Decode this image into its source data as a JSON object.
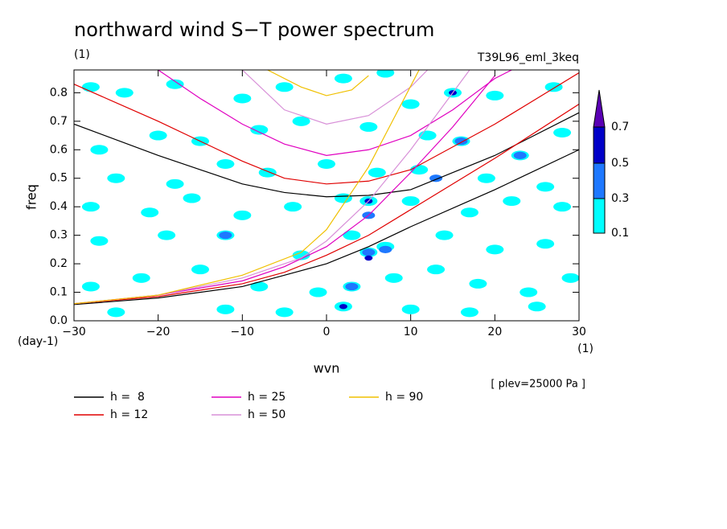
{
  "chart_data": {
    "type": "contour",
    "title": "northward wind S−T power spectrum",
    "subtitle": "T39L96_eml_3keq",
    "y_unit": "(1)",
    "x_unit": "(1)",
    "y_unit_left": "(day-1)",
    "xlabel": "wvn",
    "ylabel": "freq",
    "annotation": "[ plev=25000 Pa ]",
    "xlim": [
      -30,
      30
    ],
    "ylim": [
      0,
      0.88
    ],
    "xticks": [
      {
        "value": -30,
        "label": "−30"
      },
      {
        "value": -20,
        "label": "−20"
      },
      {
        "value": -10,
        "label": "−10"
      },
      0,
      10,
      20,
      30
    ],
    "yticks": [
      {
        "value": 0,
        "label": "0.0"
      },
      0.1,
      0.2,
      0.3,
      0.4,
      0.5,
      0.6,
      0.7,
      0.8
    ],
    "levels": [
      0.1,
      0.3,
      0.5,
      0.7
    ],
    "level_colors": [
      "#00ffff",
      "#1e78ff",
      "#0000c8",
      "#5a00b4"
    ],
    "field": [
      [
        -28,
        0.82,
        0.2
      ],
      [
        -24,
        0.8,
        0.2
      ],
      [
        -18,
        0.83,
        0.2
      ],
      [
        -10,
        0.78,
        0.2
      ],
      [
        -5,
        0.82,
        0.2
      ],
      [
        2,
        0.85,
        0.2
      ],
      [
        7,
        0.87,
        0.2
      ],
      [
        10,
        0.76,
        0.2
      ],
      [
        15,
        0.8,
        0.2
      ],
      [
        15,
        0.8,
        0.5
      ],
      [
        20,
        0.79,
        0.2
      ],
      [
        27,
        0.82,
        0.2
      ],
      [
        -27,
        0.6,
        0.2
      ],
      [
        -20,
        0.65,
        0.2
      ],
      [
        -15,
        0.63,
        0.2
      ],
      [
        -8,
        0.67,
        0.2
      ],
      [
        -3,
        0.7,
        0.2
      ],
      [
        5,
        0.68,
        0.2
      ],
      [
        12,
        0.65,
        0.2
      ],
      [
        16,
        0.63,
        0.2
      ],
      [
        16,
        0.63,
        0.4
      ],
      [
        23,
        0.58,
        0.2
      ],
      [
        23,
        0.58,
        0.4
      ],
      [
        28,
        0.66,
        0.2
      ],
      [
        -25,
        0.5,
        0.2
      ],
      [
        -18,
        0.48,
        0.2
      ],
      [
        -12,
        0.55,
        0.2
      ],
      [
        -7,
        0.52,
        0.2
      ],
      [
        0,
        0.55,
        0.2
      ],
      [
        6,
        0.52,
        0.2
      ],
      [
        11,
        0.53,
        0.2
      ],
      [
        13,
        0.5,
        0.4
      ],
      [
        19,
        0.5,
        0.2
      ],
      [
        26,
        0.47,
        0.2
      ],
      [
        -28,
        0.4,
        0.2
      ],
      [
        -21,
        0.38,
        0.2
      ],
      [
        -16,
        0.43,
        0.2
      ],
      [
        -10,
        0.37,
        0.2
      ],
      [
        -4,
        0.4,
        0.2
      ],
      [
        2,
        0.43,
        0.2
      ],
      [
        5,
        0.42,
        0.2
      ],
      [
        5,
        0.42,
        0.6
      ],
      [
        5,
        0.37,
        0.4
      ],
      [
        10,
        0.42,
        0.2
      ],
      [
        17,
        0.38,
        0.2
      ],
      [
        22,
        0.42,
        0.2
      ],
      [
        28,
        0.4,
        0.2
      ],
      [
        -27,
        0.28,
        0.2
      ],
      [
        -19,
        0.3,
        0.2
      ],
      [
        -12,
        0.3,
        0.2
      ],
      [
        -12,
        0.3,
        0.4
      ],
      [
        -3,
        0.23,
        0.2
      ],
      [
        3,
        0.3,
        0.2
      ],
      [
        5,
        0.24,
        0.2
      ],
      [
        5,
        0.24,
        0.4
      ],
      [
        5,
        0.22,
        0.6
      ],
      [
        7,
        0.26,
        0.2
      ],
      [
        7,
        0.25,
        0.4
      ],
      [
        14,
        0.3,
        0.2
      ],
      [
        20,
        0.25,
        0.2
      ],
      [
        26,
        0.27,
        0.2
      ],
      [
        -28,
        0.12,
        0.2
      ],
      [
        -22,
        0.15,
        0.2
      ],
      [
        -15,
        0.18,
        0.2
      ],
      [
        -8,
        0.12,
        0.2
      ],
      [
        -1,
        0.1,
        0.2
      ],
      [
        3,
        0.12,
        0.2
      ],
      [
        3,
        0.12,
        0.4
      ],
      [
        8,
        0.15,
        0.2
      ],
      [
        13,
        0.18,
        0.2
      ],
      [
        18,
        0.13,
        0.2
      ],
      [
        24,
        0.1,
        0.2
      ],
      [
        29,
        0.15,
        0.2
      ],
      [
        -25,
        0.03,
        0.2
      ],
      [
        -12,
        0.04,
        0.2
      ],
      [
        -5,
        0.03,
        0.2
      ],
      [
        2,
        0.05,
        0.2
      ],
      [
        2,
        0.05,
        0.6
      ],
      [
        10,
        0.04,
        0.2
      ],
      [
        17,
        0.03,
        0.2
      ],
      [
        25,
        0.05,
        0.2
      ]
    ],
    "series": [
      {
        "name": "h =  8",
        "color": "#000000",
        "curves": [
          {
            "x": [
              -30,
              -20,
              -10,
              -5,
              0,
              5,
              10,
              20,
              30
            ],
            "values": [
              0.69,
              0.58,
              0.48,
              0.45,
              0.435,
              0.44,
              0.46,
              0.58,
              0.73
            ]
          },
          {
            "x": [
              -30,
              -20,
              -10,
              -5,
              0,
              5,
              10,
              20,
              30
            ],
            "values": [
              0.057,
              0.08,
              0.12,
              0.16,
              0.2,
              0.26,
              0.33,
              0.46,
              0.6
            ]
          }
        ]
      },
      {
        "name": "h = 12",
        "color": "#e00000",
        "curves": [
          {
            "x": [
              -30,
              -20,
              -10,
              -5,
              0,
              5,
              10,
              20,
              30
            ],
            "values": [
              0.83,
              0.7,
              0.56,
              0.5,
              0.48,
              0.49,
              0.53,
              0.69,
              0.87
            ]
          },
          {
            "x": [
              -30,
              -20,
              -10,
              -5,
              0,
              5,
              10,
              20,
              30
            ],
            "values": [
              0.06,
              0.085,
              0.13,
              0.17,
              0.23,
              0.3,
              0.39,
              0.57,
              0.76
            ]
          }
        ]
      },
      {
        "name": "h = 25",
        "color": "#e000c0",
        "curves": [
          {
            "x": [
              -20,
              -15,
              -10,
              -5,
              0,
              5,
              10,
              15,
              20,
              22
            ],
            "values": [
              0.88,
              0.78,
              0.69,
              0.62,
              0.58,
              0.6,
              0.65,
              0.74,
              0.85,
              0.88
            ]
          },
          {
            "x": [
              -30,
              -20,
              -10,
              -5,
              0,
              5,
              10,
              15,
              20
            ],
            "values": [
              0.06,
              0.09,
              0.14,
              0.19,
              0.26,
              0.37,
              0.52,
              0.68,
              0.86
            ]
          }
        ]
      },
      {
        "name": "h = 50",
        "color": "#d890d8",
        "curves": [
          {
            "x": [
              -10,
              -5,
              0,
              5,
              10,
              12
            ],
            "values": [
              0.88,
              0.74,
              0.69,
              0.72,
              0.82,
              0.88
            ]
          },
          {
            "x": [
              -30,
              -20,
              -10,
              -3,
              0,
              5,
              10,
              15,
              17
            ],
            "values": [
              0.06,
              0.09,
              0.15,
              0.22,
              0.28,
              0.42,
              0.6,
              0.8,
              0.88
            ]
          }
        ]
      },
      {
        "name": "h = 90",
        "color": "#f0c000",
        "curves": [
          {
            "x": [
              -7,
              -3,
              0,
              3,
              5
            ],
            "values": [
              0.88,
              0.82,
              0.79,
              0.81,
              0.86
            ]
          },
          {
            "x": [
              -30,
              -20,
              -10,
              -3,
              0,
              5,
              8,
              11
            ],
            "values": [
              0.06,
              0.09,
              0.16,
              0.24,
              0.32,
              0.54,
              0.71,
              0.88
            ]
          }
        ]
      }
    ]
  }
}
